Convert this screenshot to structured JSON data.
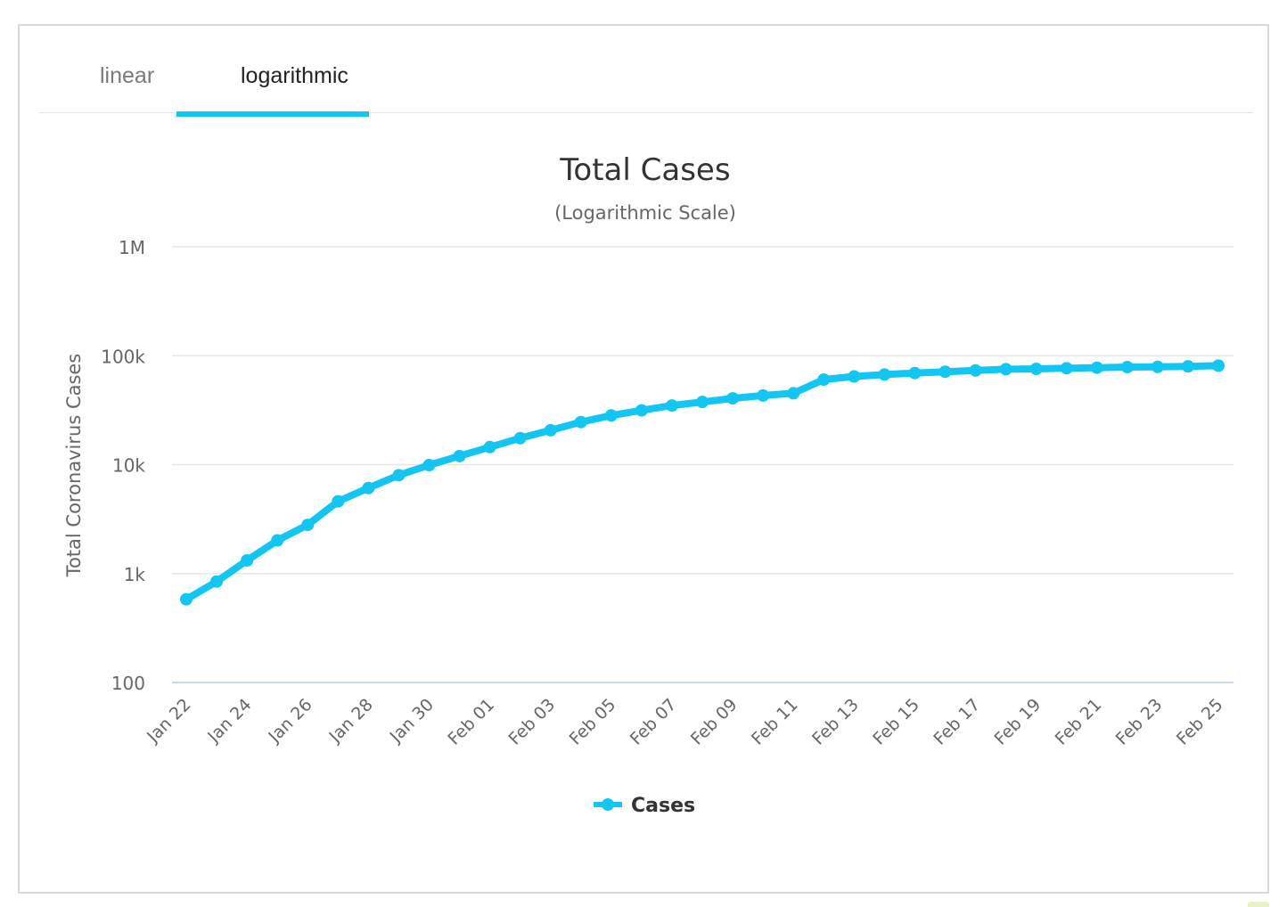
{
  "tabs": [
    {
      "label": "linear",
      "active": false
    },
    {
      "label": "logarithmic",
      "active": true
    }
  ],
  "colors": {
    "series": "#12c6f4",
    "grid": "#e6e6e6",
    "axis_line": "#ccd6eb",
    "text": "#333333",
    "muted": "#666666"
  },
  "chart_data": {
    "type": "line",
    "title": "Total Cases",
    "subtitle": "(Logarithmic Scale)",
    "ylabel": "Total Coronavirus Cases",
    "xlabel": "",
    "yscale": "log",
    "ylim": [
      100,
      1000000
    ],
    "ytick_values": [
      100,
      1000,
      10000,
      100000,
      1000000
    ],
    "ytick_labels": [
      "100",
      "1k",
      "10k",
      "100k",
      "1M"
    ],
    "x": [
      "Jan 22",
      "Jan 23",
      "Jan 24",
      "Jan 25",
      "Jan 26",
      "Jan 27",
      "Jan 28",
      "Jan 29",
      "Jan 30",
      "Jan 31",
      "Feb 01",
      "Feb 02",
      "Feb 03",
      "Feb 04",
      "Feb 05",
      "Feb 06",
      "Feb 07",
      "Feb 08",
      "Feb 09",
      "Feb 10",
      "Feb 11",
      "Feb 12",
      "Feb 13",
      "Feb 14",
      "Feb 15",
      "Feb 16",
      "Feb 17",
      "Feb 18",
      "Feb 19",
      "Feb 20",
      "Feb 21",
      "Feb 22",
      "Feb 23",
      "Feb 24",
      "Feb 25"
    ],
    "xtick_labels": [
      "Jan 22",
      "Jan 24",
      "Jan 26",
      "Jan 28",
      "Jan 30",
      "Feb 01",
      "Feb 03",
      "Feb 05",
      "Feb 07",
      "Feb 09",
      "Feb 11",
      "Feb 13",
      "Feb 15",
      "Feb 17",
      "Feb 19",
      "Feb 21",
      "Feb 23",
      "Feb 25"
    ],
    "series": [
      {
        "name": "Cases",
        "values": [
          580,
          845,
          1320,
          2015,
          2800,
          4600,
          6100,
          8000,
          9900,
          12000,
          14500,
          17500,
          20700,
          24600,
          28300,
          31500,
          34900,
          37600,
          40600,
          43100,
          45200,
          60400,
          64500,
          67100,
          69300,
          71300,
          73300,
          75200,
          75700,
          76700,
          77600,
          78600,
          79000,
          79900,
          81100
        ]
      }
    ],
    "legend": "bottom-center",
    "grid": true
  }
}
